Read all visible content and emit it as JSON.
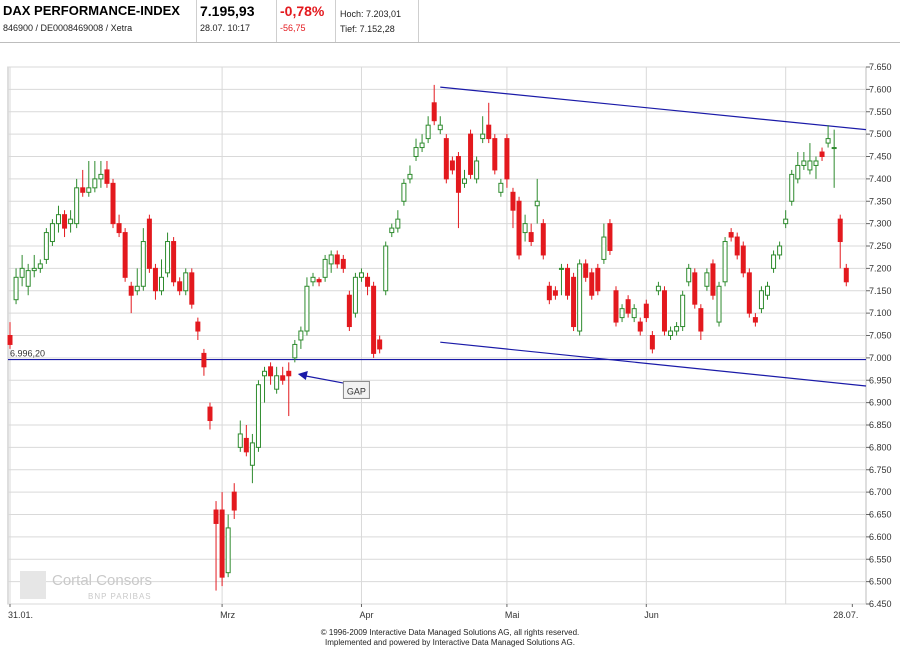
{
  "header": {
    "name": "DAX PERFORMANCE-INDEX",
    "codes": "846900 / DE0008469008 / Xetra",
    "price": "7.195,93",
    "datetime": "28.07. 10:17",
    "change_pct": "-0,78%",
    "change_abs": "-56,75",
    "high": "Hoch: 7.203,01",
    "low": "Tief: 7.152,28"
  },
  "footer": {
    "line1": "© 1996-2009 Interactive Data Managed Solutions AG, all rights reserved.",
    "line2": "Implemented and powered by Interactive Data Managed Solutions AG."
  },
  "logo": {
    "name": "Cortal Consors",
    "sub": "BNP PARIBAS"
  },
  "colors": {
    "up": "#2e8b2e",
    "down": "#e3191e",
    "trend": "#1a1aa8",
    "grid": "#d9d9d9"
  },
  "chart_data": {
    "type": "candlestick",
    "ylim": [
      6450,
      7650
    ],
    "y_ticks": [
      {
        "value": 7650,
        "label": "7.650"
      },
      {
        "value": 7600,
        "label": "7.600"
      },
      {
        "value": 7550,
        "label": "7.550"
      },
      {
        "value": 7500,
        "label": "7.500"
      },
      {
        "value": 7450,
        "label": "7.450"
      },
      {
        "value": 7400,
        "label": "7.400"
      },
      {
        "value": 7350,
        "label": "7.350"
      },
      {
        "value": 7300,
        "label": "7.300"
      },
      {
        "value": 7250,
        "label": "7.250"
      },
      {
        "value": 7200,
        "label": "7.200"
      },
      {
        "value": 7150,
        "label": "7.150"
      },
      {
        "value": 7100,
        "label": "7.100"
      },
      {
        "value": 7050,
        "label": "7.050"
      },
      {
        "value": 7000,
        "label": "7.000"
      },
      {
        "value": 6950,
        "label": "6.950"
      },
      {
        "value": 6900,
        "label": "6.900"
      },
      {
        "value": 6850,
        "label": "6.850"
      },
      {
        "value": 6800,
        "label": "6.800"
      },
      {
        "value": 6750,
        "label": "6.750"
      },
      {
        "value": 6700,
        "label": "6.700"
      },
      {
        "value": 6650,
        "label": "6.650"
      },
      {
        "value": 6600,
        "label": "6.600"
      },
      {
        "value": 6550,
        "label": "6.550"
      },
      {
        "value": 6500,
        "label": "6.500"
      },
      {
        "value": 6450,
        "label": "6.450"
      }
    ],
    "x_ticks": [
      {
        "index": 0,
        "label": "31.01."
      },
      {
        "index": 35,
        "label": "Mrz"
      },
      {
        "index": 58,
        "label": "Apr"
      },
      {
        "index": 82,
        "label": "Mai"
      },
      {
        "index": 105,
        "label": "Jun"
      },
      {
        "index": 139,
        "label": "28.07."
      }
    ],
    "x_gridlines": [
      0,
      35,
      58,
      82,
      105,
      128
    ],
    "n_slots": 141,
    "reference_line": {
      "value": 6996.2,
      "label": "6.996,20"
    },
    "trend_lines": [
      {
        "from": [
          71,
          7605
        ],
        "to": [
          145,
          7505
        ]
      },
      {
        "from": [
          71,
          7035
        ],
        "to": [
          145,
          6932
        ]
      }
    ],
    "annotation": {
      "label": "GAP",
      "target": [
        47.5,
        6964
      ],
      "box_at": [
        57,
        6925
      ]
    },
    "candles": [
      {
        "o": 7050,
        "c": 7030,
        "h": 7080,
        "l": 7020
      },
      {
        "o": 7130,
        "c": 7180,
        "h": 7200,
        "l": 7120
      },
      {
        "o": 7180,
        "c": 7200,
        "h": 7230,
        "l": 7160
      },
      {
        "o": 7160,
        "c": 7195,
        "h": 7210,
        "l": 7140
      },
      {
        "o": 7195,
        "c": 7200,
        "h": 7230,
        "l": 7180
      },
      {
        "o": 7200,
        "c": 7210,
        "h": 7220,
        "l": 7190
      },
      {
        "o": 7220,
        "c": 7280,
        "h": 7290,
        "l": 7210
      },
      {
        "o": 7260,
        "c": 7300,
        "h": 7310,
        "l": 7250
      },
      {
        "o": 7300,
        "c": 7320,
        "h": 7340,
        "l": 7280
      },
      {
        "o": 7320,
        "c": 7290,
        "h": 7330,
        "l": 7270
      },
      {
        "o": 7300,
        "c": 7310,
        "h": 7330,
        "l": 7280
      },
      {
        "o": 7300,
        "c": 7380,
        "h": 7400,
        "l": 7290
      },
      {
        "o": 7380,
        "c": 7370,
        "h": 7420,
        "l": 7360
      },
      {
        "o": 7370,
        "c": 7380,
        "h": 7440,
        "l": 7360
      },
      {
        "o": 7380,
        "c": 7400,
        "h": 7440,
        "l": 7370
      },
      {
        "o": 7400,
        "c": 7410,
        "h": 7440,
        "l": 7380
      },
      {
        "o": 7420,
        "c": 7390,
        "h": 7440,
        "l": 7380
      },
      {
        "o": 7390,
        "c": 7300,
        "h": 7400,
        "l": 7290
      },
      {
        "o": 7300,
        "c": 7280,
        "h": 7320,
        "l": 7270
      },
      {
        "o": 7280,
        "c": 7180,
        "h": 7290,
        "l": 7170
      },
      {
        "o": 7160,
        "c": 7140,
        "h": 7170,
        "l": 7100
      },
      {
        "o": 7150,
        "c": 7160,
        "h": 7200,
        "l": 7140
      },
      {
        "o": 7160,
        "c": 7260,
        "h": 7290,
        "l": 7150
      },
      {
        "o": 7310,
        "c": 7200,
        "h": 7320,
        "l": 7190
      },
      {
        "o": 7200,
        "c": 7150,
        "h": 7210,
        "l": 7130
      },
      {
        "o": 7150,
        "c": 7180,
        "h": 7220,
        "l": 7140
      },
      {
        "o": 7190,
        "c": 7260,
        "h": 7280,
        "l": 7180
      },
      {
        "o": 7260,
        "c": 7170,
        "h": 7270,
        "l": 7160
      },
      {
        "o": 7170,
        "c": 7150,
        "h": 7180,
        "l": 7140
      },
      {
        "o": 7150,
        "c": 7190,
        "h": 7200,
        "l": 7140
      },
      {
        "o": 7190,
        "c": 7120,
        "h": 7200,
        "l": 7110
      },
      {
        "o": 7080,
        "c": 7060,
        "h": 7090,
        "l": 7040
      },
      {
        "o": 7010,
        "c": 6980,
        "h": 7020,
        "l": 6960
      },
      {
        "o": 6890,
        "c": 6860,
        "h": 6900,
        "l": 6840
      },
      {
        "o": 6660,
        "c": 6630,
        "h": 6680,
        "l": 6480
      },
      {
        "o": 6660,
        "c": 6510,
        "h": 6700,
        "l": 6490
      },
      {
        "o": 6520,
        "c": 6620,
        "h": 6650,
        "l": 6510
      },
      {
        "o": 6700,
        "c": 6660,
        "h": 6720,
        "l": 6640
      },
      {
        "o": 6800,
        "c": 6830,
        "h": 6860,
        "l": 6790
      },
      {
        "o": 6820,
        "c": 6790,
        "h": 6850,
        "l": 6780
      },
      {
        "o": 6760,
        "c": 6810,
        "h": 6830,
        "l": 6720
      },
      {
        "o": 6800,
        "c": 6940,
        "h": 6950,
        "l": 6790
      },
      {
        "o": 6960,
        "c": 6970,
        "h": 6980,
        "l": 6900
      },
      {
        "o": 6980,
        "c": 6960,
        "h": 6990,
        "l": 6940
      },
      {
        "o": 6930,
        "c": 6960,
        "h": 6980,
        "l": 6920
      },
      {
        "o": 6960,
        "c": 6950,
        "h": 6980,
        "l": 6940
      },
      {
        "o": 6970,
        "c": 6960,
        "h": 6990,
        "l": 6870
      },
      {
        "o": 7000,
        "c": 7030,
        "h": 7040,
        "l": 6990
      },
      {
        "o": 7040,
        "c": 7060,
        "h": 7070,
        "l": 7020
      },
      {
        "o": 7060,
        "c": 7160,
        "h": 7180,
        "l": 7050
      },
      {
        "o": 7170,
        "c": 7180,
        "h": 7190,
        "l": 7160
      },
      {
        "o": 7175,
        "c": 7170,
        "h": 7180,
        "l": 7160
      },
      {
        "o": 7180,
        "c": 7220,
        "h": 7230,
        "l": 7170
      },
      {
        "o": 7210,
        "c": 7230,
        "h": 7240,
        "l": 7190
      },
      {
        "o": 7230,
        "c": 7210,
        "h": 7240,
        "l": 7200
      },
      {
        "o": 7220,
        "c": 7200,
        "h": 7230,
        "l": 7190
      },
      {
        "o": 7140,
        "c": 7070,
        "h": 7150,
        "l": 7060
      },
      {
        "o": 7100,
        "c": 7180,
        "h": 7190,
        "l": 7090
      },
      {
        "o": 7180,
        "c": 7190,
        "h": 7200,
        "l": 7170
      },
      {
        "o": 7180,
        "c": 7160,
        "h": 7190,
        "l": 7140
      },
      {
        "o": 7160,
        "c": 7010,
        "h": 7170,
        "l": 7000
      },
      {
        "o": 7040,
        "c": 7020,
        "h": 7050,
        "l": 7010
      },
      {
        "o": 7150,
        "c": 7250,
        "h": 7260,
        "l": 7140
      },
      {
        "o": 7280,
        "c": 7290,
        "h": 7300,
        "l": 7270
      },
      {
        "o": 7290,
        "c": 7310,
        "h": 7330,
        "l": 7280
      },
      {
        "o": 7350,
        "c": 7390,
        "h": 7400,
        "l": 7340
      },
      {
        "o": 7400,
        "c": 7410,
        "h": 7430,
        "l": 7390
      },
      {
        "o": 7450,
        "c": 7470,
        "h": 7490,
        "l": 7440
      },
      {
        "o": 7470,
        "c": 7480,
        "h": 7500,
        "l": 7460
      },
      {
        "o": 7490,
        "c": 7520,
        "h": 7540,
        "l": 7480
      },
      {
        "o": 7570,
        "c": 7530,
        "h": 7610,
        "l": 7520
      },
      {
        "o": 7510,
        "c": 7520,
        "h": 7540,
        "l": 7500
      },
      {
        "o": 7490,
        "c": 7400,
        "h": 7500,
        "l": 7390
      },
      {
        "o": 7440,
        "c": 7420,
        "h": 7450,
        "l": 7410
      },
      {
        "o": 7450,
        "c": 7370,
        "h": 7460,
        "l": 7290
      },
      {
        "o": 7390,
        "c": 7400,
        "h": 7420,
        "l": 7380
      },
      {
        "o": 7500,
        "c": 7410,
        "h": 7510,
        "l": 7400
      },
      {
        "o": 7400,
        "c": 7440,
        "h": 7450,
        "l": 7390
      },
      {
        "o": 7490,
        "c": 7500,
        "h": 7540,
        "l": 7480
      },
      {
        "o": 7520,
        "c": 7490,
        "h": 7570,
        "l": 7480
      },
      {
        "o": 7490,
        "c": 7420,
        "h": 7500,
        "l": 7410
      },
      {
        "o": 7370,
        "c": 7390,
        "h": 7400,
        "l": 7360
      },
      {
        "o": 7490,
        "c": 7400,
        "h": 7500,
        "l": 7380
      },
      {
        "o": 7370,
        "c": 7330,
        "h": 7380,
        "l": 7290
      },
      {
        "o": 7350,
        "c": 7230,
        "h": 7360,
        "l": 7220
      },
      {
        "o": 7280,
        "c": 7300,
        "h": 7320,
        "l": 7260
      },
      {
        "o": 7280,
        "c": 7260,
        "h": 7300,
        "l": 7250
      },
      {
        "o": 7340,
        "c": 7350,
        "h": 7400,
        "l": 7300
      },
      {
        "o": 7300,
        "c": 7230,
        "h": 7310,
        "l": 7220
      },
      {
        "o": 7160,
        "c": 7130,
        "h": 7170,
        "l": 7120
      },
      {
        "o": 7150,
        "c": 7140,
        "h": 7160,
        "l": 7130
      },
      {
        "o": 7200,
        "c": 7200,
        "h": 7210,
        "l": 7140
      },
      {
        "o": 7200,
        "c": 7140,
        "h": 7210,
        "l": 7130
      },
      {
        "o": 7180,
        "c": 7070,
        "h": 7190,
        "l": 7060
      },
      {
        "o": 7060,
        "c": 7210,
        "h": 7220,
        "l": 7050
      },
      {
        "o": 7210,
        "c": 7180,
        "h": 7220,
        "l": 7170
      },
      {
        "o": 7190,
        "c": 7140,
        "h": 7200,
        "l": 7130
      },
      {
        "o": 7200,
        "c": 7150,
        "h": 7210,
        "l": 7140
      },
      {
        "o": 7220,
        "c": 7270,
        "h": 7300,
        "l": 7210
      },
      {
        "o": 7300,
        "c": 7240,
        "h": 7310,
        "l": 7230
      },
      {
        "o": 7150,
        "c": 7080,
        "h": 7160,
        "l": 7070
      },
      {
        "o": 7090,
        "c": 7110,
        "h": 7120,
        "l": 7080
      },
      {
        "o": 7130,
        "c": 7100,
        "h": 7140,
        "l": 7090
      },
      {
        "o": 7090,
        "c": 7110,
        "h": 7120,
        "l": 7080
      },
      {
        "o": 7080,
        "c": 7060,
        "h": 7090,
        "l": 7050
      },
      {
        "o": 7120,
        "c": 7090,
        "h": 7130,
        "l": 7080
      },
      {
        "o": 7050,
        "c": 7020,
        "h": 7060,
        "l": 7010
      },
      {
        "o": 7150,
        "c": 7160,
        "h": 7170,
        "l": 7140
      },
      {
        "o": 7150,
        "c": 7060,
        "h": 7160,
        "l": 7050
      },
      {
        "o": 7050,
        "c": 7060,
        "h": 7070,
        "l": 7040
      },
      {
        "o": 7060,
        "c": 7070,
        "h": 7080,
        "l": 7050
      },
      {
        "o": 7070,
        "c": 7140,
        "h": 7150,
        "l": 7060
      },
      {
        "o": 7170,
        "c": 7200,
        "h": 7210,
        "l": 7160
      },
      {
        "o": 7190,
        "c": 7120,
        "h": 7200,
        "l": 7110
      },
      {
        "o": 7110,
        "c": 7060,
        "h": 7120,
        "l": 7040
      },
      {
        "o": 7160,
        "c": 7190,
        "h": 7200,
        "l": 7150
      },
      {
        "o": 7210,
        "c": 7140,
        "h": 7220,
        "l": 7130
      },
      {
        "o": 7080,
        "c": 7160,
        "h": 7170,
        "l": 7070
      },
      {
        "o": 7170,
        "c": 7260,
        "h": 7270,
        "l": 7160
      },
      {
        "o": 7280,
        "c": 7270,
        "h": 7290,
        "l": 7260
      },
      {
        "o": 7270,
        "c": 7230,
        "h": 7280,
        "l": 7220
      },
      {
        "o": 7250,
        "c": 7190,
        "h": 7260,
        "l": 7180
      },
      {
        "o": 7190,
        "c": 7100,
        "h": 7200,
        "l": 7090
      },
      {
        "o": 7090,
        "c": 7080,
        "h": 7100,
        "l": 7070
      },
      {
        "o": 7110,
        "c": 7150,
        "h": 7160,
        "l": 7100
      },
      {
        "o": 7140,
        "c": 7160,
        "h": 7170,
        "l": 7130
      },
      {
        "o": 7200,
        "c": 7230,
        "h": 7240,
        "l": 7190
      },
      {
        "o": 7230,
        "c": 7250,
        "h": 7260,
        "l": 7220
      },
      {
        "o": 7300,
        "c": 7310,
        "h": 7330,
        "l": 7290
      },
      {
        "o": 7350,
        "c": 7410,
        "h": 7420,
        "l": 7340
      },
      {
        "o": 7400,
        "c": 7430,
        "h": 7460,
        "l": 7390
      },
      {
        "o": 7430,
        "c": 7440,
        "h": 7460,
        "l": 7420
      },
      {
        "o": 7420,
        "c": 7440,
        "h": 7480,
        "l": 7410
      },
      {
        "o": 7430,
        "c": 7440,
        "h": 7450,
        "l": 7400
      },
      {
        "o": 7460,
        "c": 7450,
        "h": 7470,
        "l": 7440
      },
      {
        "o": 7480,
        "c": 7490,
        "h": 7520,
        "l": 7470
      },
      {
        "o": 7470,
        "c": 7470,
        "h": 7510,
        "l": 7380
      },
      {
        "o": 7310,
        "c": 7260,
        "h": 7320,
        "l": 7200
      },
      {
        "o": 7200,
        "c": 7170,
        "h": 7210,
        "l": 7160
      }
    ]
  }
}
